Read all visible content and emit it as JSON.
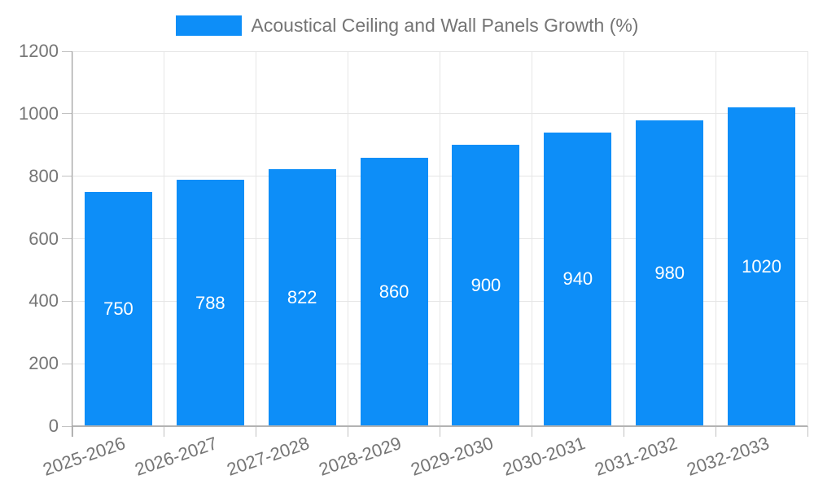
{
  "chart_data": {
    "type": "bar",
    "title": "Acoustical Ceiling and Wall Panels Growth (%)",
    "categories": [
      "2025-2026",
      "2026-2027",
      "2027-2028",
      "2028-2029",
      "2029-2030",
      "2030-2031",
      "2031-2032",
      "2032-2033"
    ],
    "series": [
      {
        "name": "Acoustical Ceiling and Wall Panels Growth (%)",
        "values": [
          750,
          788,
          822,
          860,
          900,
          940,
          980,
          1020
        ]
      }
    ],
    "bar_value_labels": [
      "750",
      "788",
      "822",
      "860",
      "900",
      "940",
      "980",
      "1020"
    ],
    "xlabel": "",
    "ylabel": "",
    "ylim": [
      0,
      1200
    ],
    "yticks": [
      0,
      200,
      400,
      600,
      800,
      1000,
      1200
    ],
    "ytick_labels": [
      "0",
      "200",
      "400",
      "600",
      "800",
      "1000",
      "1200"
    ],
    "grid": true,
    "legend_position": "top-center",
    "x_label_rotation_deg": -19,
    "colors": {
      "bar": "#0d8ef8",
      "grid": "#e6e6e6",
      "tick": "#c2c2c2",
      "axis_y": "#9e9e9e",
      "axis_x": "#b3b3b3",
      "text": "#757575",
      "bar_label": "#ffffff",
      "background": "#ffffff"
    }
  }
}
